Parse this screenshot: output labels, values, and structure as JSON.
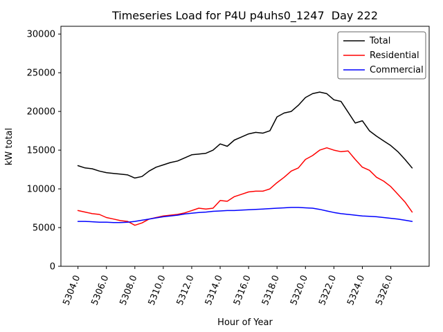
{
  "chart_data": {
    "type": "line",
    "title": "Timeseries Load for P4U p4uhs0_1247  Day 222",
    "xlabel": "Hour of Year",
    "ylabel": "kW total",
    "xlim": [
      5302.8,
      5328.7
    ],
    "ylim": [
      0,
      31000
    ],
    "grid": false,
    "legend_position": "upper right",
    "legend_border_color": "#666666",
    "xticks": [
      5304,
      5306,
      5308,
      5310,
      5312,
      5314,
      5316,
      5318,
      5320,
      5322,
      5324,
      5326
    ],
    "xtick_labels": [
      "5304.0",
      "5306.0",
      "5308.0",
      "5310.0",
      "5312.0",
      "5314.0",
      "5316.0",
      "5318.0",
      "5320.0",
      "5322.0",
      "5324.0",
      "5326.0"
    ],
    "xtick_rotation": 68,
    "yticks": [
      0,
      5000,
      10000,
      15000,
      20000,
      25000,
      30000
    ],
    "ytick_labels": [
      "0",
      "5000",
      "10000",
      "15000",
      "20000",
      "25000",
      "30000"
    ],
    "x": [
      5304.0,
      5304.5,
      5305.0,
      5305.5,
      5306.0,
      5306.5,
      5307.0,
      5307.5,
      5308.0,
      5308.5,
      5309.0,
      5309.5,
      5310.0,
      5310.5,
      5311.0,
      5311.5,
      5312.0,
      5312.5,
      5313.0,
      5313.5,
      5314.0,
      5314.5,
      5315.0,
      5315.5,
      5316.0,
      5316.5,
      5317.0,
      5317.5,
      5318.0,
      5318.5,
      5319.0,
      5319.5,
      5320.0,
      5320.5,
      5321.0,
      5321.5,
      5322.0,
      5322.5,
      5323.0,
      5323.5,
      5324.0,
      5324.5,
      5325.0,
      5325.5,
      5326.0,
      5326.5,
      5327.0,
      5327.5
    ],
    "series": [
      {
        "name": "Total",
        "color": "#000000",
        "values": [
          13000,
          12700,
          12600,
          12300,
          12100,
          12000,
          11900,
          11800,
          11400,
          11600,
          12300,
          12800,
          13100,
          13400,
          13600,
          14000,
          14400,
          14500,
          14600,
          15000,
          15800,
          15500,
          16300,
          16700,
          17100,
          17300,
          17200,
          17500,
          19300,
          19800,
          20000,
          20800,
          21800,
          22300,
          22500,
          22300,
          21500,
          21300,
          19900,
          18500,
          18800,
          17500,
          16800,
          16200,
          15600,
          14800,
          13800,
          12700
        ]
      },
      {
        "name": "Residential",
        "color": "#ff0000",
        "values": [
          7200,
          7000,
          6800,
          6700,
          6300,
          6100,
          5900,
          5800,
          5300,
          5600,
          6100,
          6300,
          6500,
          6600,
          6700,
          6900,
          7200,
          7500,
          7400,
          7500,
          8500,
          8400,
          9000,
          9300,
          9600,
          9700,
          9700,
          10000,
          10800,
          11500,
          12300,
          12700,
          13800,
          14300,
          15000,
          15300,
          15000,
          14800,
          14900,
          13800,
          12800,
          12400,
          11500,
          11000,
          10300,
          9300,
          8300,
          7000
        ]
      },
      {
        "name": "Commercial",
        "color": "#0000ff",
        "values": [
          5800,
          5800,
          5750,
          5700,
          5700,
          5650,
          5650,
          5700,
          5800,
          5950,
          6100,
          6250,
          6400,
          6500,
          6600,
          6750,
          6850,
          6950,
          7000,
          7100,
          7150,
          7200,
          7200,
          7250,
          7300,
          7350,
          7400,
          7450,
          7500,
          7550,
          7600,
          7600,
          7550,
          7500,
          7350,
          7150,
          6950,
          6800,
          6700,
          6600,
          6500,
          6450,
          6400,
          6300,
          6200,
          6100,
          5950,
          5800
        ]
      }
    ]
  }
}
